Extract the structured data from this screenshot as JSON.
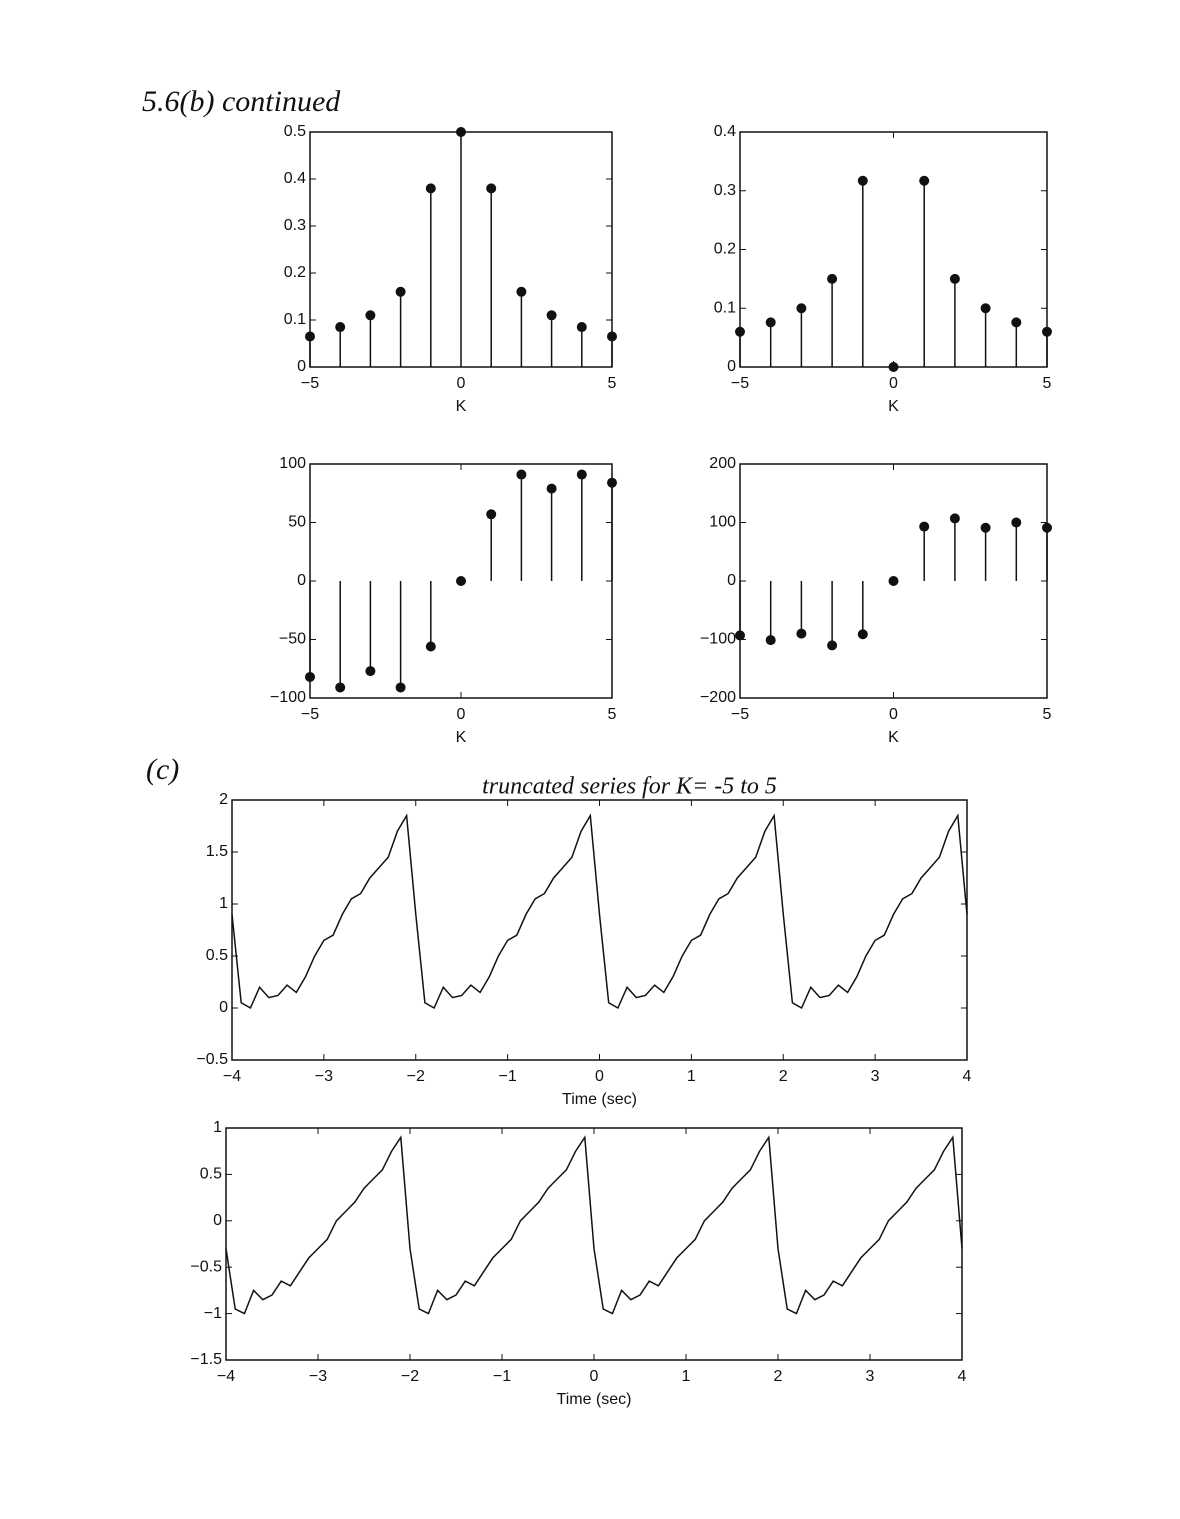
{
  "header": {
    "title": "5.6(b) continued",
    "part_c": "(c)"
  },
  "chart_data": [
    {
      "type": "stem",
      "xlabel": "K",
      "color": "#111111",
      "x": [
        -5,
        -4,
        -3,
        -2,
        -1,
        0,
        1,
        2,
        3,
        4,
        5
      ],
      "values": [
        0.065,
        0.085,
        0.11,
        0.16,
        0.38,
        0.5,
        0.38,
        0.16,
        0.11,
        0.085,
        0.065
      ],
      "xlim": [
        -5,
        5
      ],
      "xticks": [
        {
          "value": -5,
          "label": "−5"
        },
        0,
        5
      ],
      "ylim": [
        0,
        0.5
      ],
      "yticks": [
        0,
        0.1,
        0.2,
        0.3,
        0.4,
        0.5
      ]
    },
    {
      "type": "stem",
      "xlabel": "K",
      "color": "#111111",
      "x": [
        -5,
        -4,
        -3,
        -2,
        -1,
        0,
        1,
        2,
        3,
        4,
        5
      ],
      "values": [
        0.06,
        0.076,
        0.1,
        0.15,
        0.317,
        0,
        0.317,
        0.15,
        0.1,
        0.076,
        0.06
      ],
      "xlim": [
        -5,
        5
      ],
      "xticks": [
        {
          "value": -5,
          "label": "−5"
        },
        0,
        5
      ],
      "ylim": [
        0,
        0.4
      ],
      "yticks": [
        0,
        0.1,
        0.2,
        0.3,
        0.4
      ]
    },
    {
      "type": "stem",
      "xlabel": "K",
      "color": "#111111",
      "x": [
        -5,
        -4,
        -3,
        -2,
        -1,
        0,
        1,
        2,
        3,
        4,
        5
      ],
      "values": [
        -82,
        -91,
        -77,
        -91,
        -56,
        0,
        57,
        91,
        79,
        91,
        84
      ],
      "xlim": [
        -5,
        5
      ],
      "xticks": [
        {
          "value": -5,
          "label": "−5"
        },
        0,
        5
      ],
      "ylim": [
        -100,
        100
      ],
      "yticks": [
        {
          "value": -100,
          "label": "−100"
        },
        {
          "value": -50,
          "label": "−50"
        },
        0,
        50,
        100
      ]
    },
    {
      "type": "stem",
      "xlabel": "K",
      "color": "#111111",
      "x": [
        -5,
        -4,
        -3,
        -2,
        -1,
        0,
        1,
        2,
        3,
        4,
        5
      ],
      "values": [
        -93,
        -101,
        -90,
        -110,
        -91,
        0,
        93,
        107,
        91,
        100,
        91
      ],
      "xlim": [
        -5,
        5
      ],
      "xticks": [
        {
          "value": -5,
          "label": "−5"
        },
        0,
        5
      ],
      "ylim": [
        -200,
        200
      ],
      "yticks": [
        {
          "value": -200,
          "label": "−200"
        },
        {
          "value": -100,
          "label": "−100"
        },
        0,
        100,
        200
      ]
    },
    {
      "type": "line",
      "title": "truncated series for K= -5 to 5",
      "xlabel": "Time (sec)",
      "color": "#111111",
      "x": [
        -4,
        -3.9,
        -3.8,
        -3.7,
        -3.6,
        -3.5,
        -3.4,
        -3.3,
        -3.2,
        -3.1,
        -3,
        -2.9,
        -2.8,
        -2.7,
        -2.6,
        -2.5,
        -2.4,
        -2.3,
        -2.2,
        -2.1,
        -2,
        -1.9,
        -1.8,
        -1.7,
        -1.6,
        -1.5,
        -1.4,
        -1.3,
        -1.2,
        -1.1,
        -1,
        -0.9,
        -0.8,
        -0.7,
        -0.6,
        -0.5,
        -0.4,
        -0.3,
        -0.2,
        -0.1,
        0,
        0.1,
        0.2,
        0.3,
        0.4,
        0.5,
        0.6,
        0.7,
        0.8,
        0.9,
        1,
        1.1,
        1.2,
        1.3,
        1.4,
        1.5,
        1.6,
        1.7,
        1.8,
        1.9,
        2,
        2.1,
        2.2,
        2.3,
        2.4,
        2.5,
        2.6,
        2.7,
        2.8,
        2.9,
        3,
        3.1,
        3.2,
        3.3,
        3.4,
        3.5,
        3.6,
        3.7,
        3.8,
        3.9,
        4
      ],
      "values": [
        0.9,
        0.05,
        0,
        0.2,
        0.1,
        0.12,
        0.22,
        0.15,
        0.3,
        0.5,
        0.65,
        0.7,
        0.9,
        1.05,
        1.1,
        1.25,
        1.35,
        1.45,
        1.7,
        1.85,
        0.9,
        0.05,
        0,
        0.2,
        0.1,
        0.12,
        0.22,
        0.15,
        0.3,
        0.5,
        0.65,
        0.7,
        0.9,
        1.05,
        1.1,
        1.25,
        1.35,
        1.45,
        1.7,
        1.85,
        0.9,
        0.05,
        0,
        0.2,
        0.1,
        0.12,
        0.22,
        0.15,
        0.3,
        0.5,
        0.65,
        0.7,
        0.9,
        1.05,
        1.1,
        1.25,
        1.35,
        1.45,
        1.7,
        1.85,
        0.9,
        0.05,
        0,
        0.2,
        0.1,
        0.12,
        0.22,
        0.15,
        0.3,
        0.5,
        0.65,
        0.7,
        0.9,
        1.05,
        1.1,
        1.25,
        1.35,
        1.45,
        1.7,
        1.85,
        0.9
      ],
      "xlim": [
        -4,
        4
      ],
      "xticks": [
        {
          "value": -4,
          "label": "−4"
        },
        {
          "value": -3,
          "label": "−3"
        },
        {
          "value": -2,
          "label": "−2"
        },
        {
          "value": -1,
          "label": "−1"
        },
        0,
        1,
        2,
        3,
        4
      ],
      "ylim": [
        -0.5,
        2
      ],
      "yticks": [
        {
          "value": -0.5,
          "label": "−0.5"
        },
        0,
        0.5,
        1,
        1.5,
        2
      ]
    },
    {
      "type": "line",
      "xlabel": "Time (sec)",
      "color": "#111111",
      "x": [
        -4,
        -3.9,
        -3.8,
        -3.7,
        -3.6,
        -3.5,
        -3.4,
        -3.3,
        -3.2,
        -3.1,
        -3,
        -2.9,
        -2.8,
        -2.7,
        -2.6,
        -2.5,
        -2.4,
        -2.3,
        -2.2,
        -2.1,
        -2,
        -1.9,
        -1.8,
        -1.7,
        -1.6,
        -1.5,
        -1.4,
        -1.3,
        -1.2,
        -1.1,
        -1,
        -0.9,
        -0.8,
        -0.7,
        -0.6,
        -0.5,
        -0.4,
        -0.3,
        -0.2,
        -0.1,
        0,
        0.1,
        0.2,
        0.3,
        0.4,
        0.5,
        0.6,
        0.7,
        0.8,
        0.9,
        1,
        1.1,
        1.2,
        1.3,
        1.4,
        1.5,
        1.6,
        1.7,
        1.8,
        1.9,
        2,
        2.1,
        2.2,
        2.3,
        2.4,
        2.5,
        2.6,
        2.7,
        2.8,
        2.9,
        3,
        3.1,
        3.2,
        3.3,
        3.4,
        3.5,
        3.6,
        3.7,
        3.8,
        3.9,
        4
      ],
      "values": [
        -0.3,
        -0.95,
        -1,
        -0.75,
        -0.85,
        -0.8,
        -0.65,
        -0.7,
        -0.55,
        -0.4,
        -0.3,
        -0.2,
        0,
        0.1,
        0.2,
        0.35,
        0.45,
        0.55,
        0.75,
        0.9,
        -0.3,
        -0.95,
        -1,
        -0.75,
        -0.85,
        -0.8,
        -0.65,
        -0.7,
        -0.55,
        -0.4,
        -0.3,
        -0.2,
        0,
        0.1,
        0.2,
        0.35,
        0.45,
        0.55,
        0.75,
        0.9,
        -0.3,
        -0.95,
        -1,
        -0.75,
        -0.85,
        -0.8,
        -0.65,
        -0.7,
        -0.55,
        -0.4,
        -0.3,
        -0.2,
        0,
        0.1,
        0.2,
        0.35,
        0.45,
        0.55,
        0.75,
        0.9,
        -0.3,
        -0.95,
        -1,
        -0.75,
        -0.85,
        -0.8,
        -0.65,
        -0.7,
        -0.55,
        -0.4,
        -0.3,
        -0.2,
        0,
        0.1,
        0.2,
        0.35,
        0.45,
        0.55,
        0.75,
        0.9,
        -0.3
      ],
      "xlim": [
        -4,
        4
      ],
      "xticks": [
        {
          "value": -4,
          "label": "−4"
        },
        {
          "value": -3,
          "label": "−3"
        },
        {
          "value": -2,
          "label": "−2"
        },
        {
          "value": -1,
          "label": "−1"
        },
        0,
        1,
        2,
        3,
        4
      ],
      "ylim": [
        -1.5,
        1
      ],
      "yticks": [
        {
          "value": -1.5,
          "label": "−1.5"
        },
        {
          "value": -1,
          "label": "−1"
        },
        {
          "value": -0.5,
          "label": "−0.5"
        },
        0,
        0.5,
        1
      ]
    }
  ]
}
